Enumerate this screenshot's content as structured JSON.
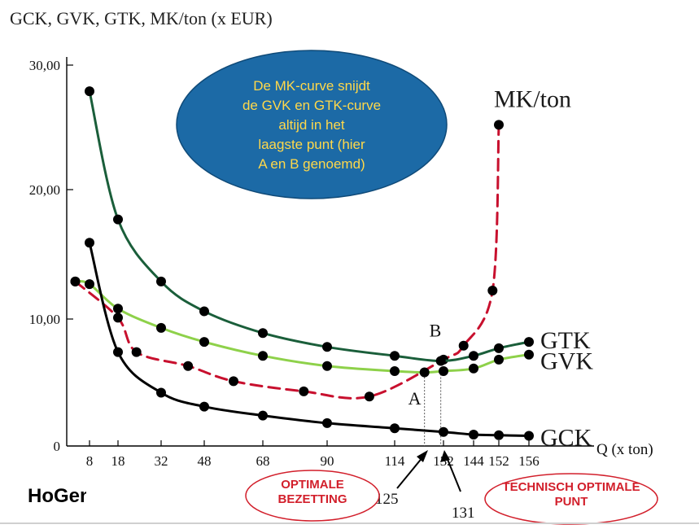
{
  "chart_data": {
    "type": "line",
    "title": "GCK, GVK, GTK, MK/ton (x EUR)",
    "xlabel": "Q (x ton)",
    "ylabel": "",
    "x_ticks": [
      "8",
      "18",
      "32",
      "48",
      "68",
      "90",
      "114",
      "132",
      "144",
      "152",
      "156"
    ],
    "y_ticks": [
      "0",
      "10,00",
      "20,00",
      "30,00"
    ],
    "ylim": [
      0,
      30
    ],
    "series": [
      {
        "name": "MK/ton",
        "color": "#c8102e",
        "style": "dashed",
        "points": [
          [
            3,
            12.9
          ],
          [
            18,
            10.1
          ],
          [
            24,
            7.4
          ],
          [
            42,
            6.3
          ],
          [
            58,
            5.1
          ],
          [
            82,
            4.3
          ],
          [
            105,
            3.9
          ],
          [
            132,
            6.8
          ],
          [
            140,
            7.9
          ],
          [
            150,
            12.2
          ],
          [
            152,
            25.2
          ]
        ]
      },
      {
        "name": "GTK",
        "color": "#1a5e3a",
        "style": "solid",
        "points": [
          [
            8,
            27.9
          ],
          [
            18,
            17.7
          ],
          [
            32,
            12.9
          ],
          [
            48,
            10.6
          ],
          [
            68,
            8.9
          ],
          [
            90,
            7.8
          ],
          [
            114,
            7.1
          ],
          [
            131,
            6.7
          ],
          [
            144,
            7.1
          ],
          [
            152,
            7.7
          ],
          [
            156,
            8.2
          ]
        ]
      },
      {
        "name": "GVK",
        "color": "#8ed14a",
        "style": "solid",
        "points": [
          [
            3,
            12.9
          ],
          [
            8,
            12.7
          ],
          [
            18,
            10.8
          ],
          [
            32,
            9.3
          ],
          [
            48,
            8.2
          ],
          [
            68,
            7.1
          ],
          [
            90,
            6.3
          ],
          [
            114,
            5.9
          ],
          [
            125,
            5.8
          ],
          [
            132,
            5.9
          ],
          [
            144,
            6.1
          ],
          [
            152,
            6.8
          ],
          [
            156,
            7.2
          ]
        ]
      },
      {
        "name": "GCK",
        "color": "#000000",
        "style": "solid",
        "points": [
          [
            8,
            15.9
          ],
          [
            18,
            7.4
          ],
          [
            32,
            4.2
          ],
          [
            48,
            3.1
          ],
          [
            68,
            2.4
          ],
          [
            90,
            1.8
          ],
          [
            114,
            1.4
          ],
          [
            132,
            1.1
          ],
          [
            144,
            0.9
          ],
          [
            152,
            0.85
          ],
          [
            156,
            0.8
          ]
        ]
      }
    ],
    "annotations": [
      {
        "label": "A",
        "x": 125,
        "y": 5.7
      },
      {
        "label": "B",
        "x": 131,
        "y": 6.7
      }
    ],
    "markers": [
      "125",
      "131"
    ],
    "bubble_text": "De MK-curve snijdt de GVK en GTK-curve altijd in het laagste punt (hier A en B genoemd)",
    "callouts": [
      "OPTIMALE BEZETTING",
      "TECHNISCH OPTIMALE PUNT"
    ],
    "colors": {
      "bubble": "#1c6aa6",
      "bubble_text": "#ffd84a",
      "callout": "#d21f2b"
    }
  },
  "footer": {
    "logo": "HoGent"
  }
}
